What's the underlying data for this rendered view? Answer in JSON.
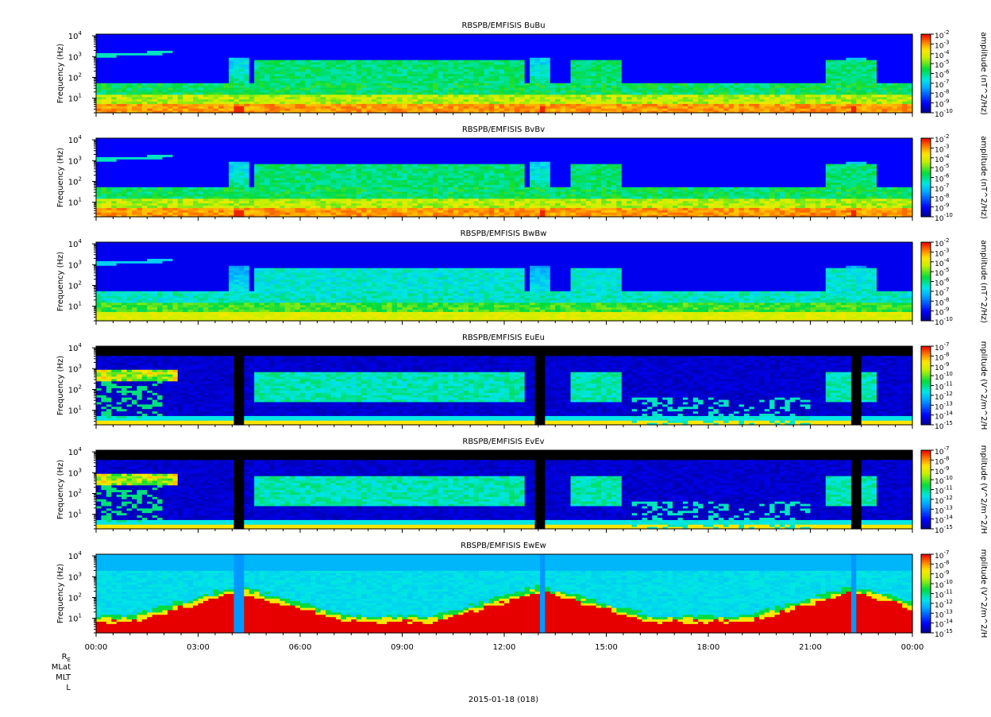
{
  "panels": [
    {
      "title": "RBSPB/EMFISIS  BuBu",
      "ylabel": "Frequency (Hz)",
      "yticks": [
        "10",
        "10",
        "10",
        "10"
      ],
      "ytick_exponents": [
        "1",
        "2",
        "3",
        "4"
      ],
      "colorbar_label": "amplitude (nT^2/Hz)",
      "colorbar_ticks": [
        "10",
        "10",
        "10",
        "10",
        "10",
        "10",
        "10",
        "10",
        "10"
      ],
      "colorbar_exponents": [
        "-2",
        "-3",
        "-4",
        "-5",
        "-6",
        "-7",
        "-8",
        "-9",
        "-10"
      ],
      "variant": "B"
    },
    {
      "title": "RBSPB/EMFISIS  BvBv",
      "ylabel": "Frequency (Hz)",
      "yticks": [
        "10",
        "10",
        "10",
        "10"
      ],
      "ytick_exponents": [
        "1",
        "2",
        "3",
        "4"
      ],
      "colorbar_label": "amplitude (nT^2/Hz)",
      "colorbar_ticks": [
        "10",
        "10",
        "10",
        "10",
        "10",
        "10",
        "10",
        "10",
        "10"
      ],
      "colorbar_exponents": [
        "-2",
        "-3",
        "-4",
        "-5",
        "-6",
        "-7",
        "-8",
        "-9",
        "-10"
      ],
      "variant": "B"
    },
    {
      "title": "RBSPB/EMFISIS  BwBw",
      "ylabel": "Frequency (Hz)",
      "yticks": [
        "10",
        "10",
        "10",
        "10"
      ],
      "ytick_exponents": [
        "1",
        "2",
        "3",
        "4"
      ],
      "colorbar_label": "amplitude (nT^2/Hz)",
      "colorbar_ticks": [
        "10",
        "10",
        "10",
        "10",
        "10",
        "10",
        "10",
        "10",
        "10"
      ],
      "colorbar_exponents": [
        "-2",
        "-3",
        "-4",
        "-5",
        "-6",
        "-7",
        "-8",
        "-9",
        "-10"
      ],
      "variant": "Bw"
    },
    {
      "title": "RBSPB/EMFISIS  EuEu",
      "ylabel": "Frequency (Hz)",
      "yticks": [
        "10",
        "10",
        "10",
        "10"
      ],
      "ytick_exponents": [
        "1",
        "2",
        "3",
        "4"
      ],
      "colorbar_label": "mplitude (V^2/m^2/H",
      "colorbar_ticks": [
        "10",
        "10",
        "10",
        "10",
        "10",
        "10",
        "10",
        "10",
        "10"
      ],
      "colorbar_exponents": [
        "-7",
        "-8",
        "-9",
        "-10",
        "-11",
        "-12",
        "-13",
        "-14",
        "-15"
      ],
      "variant": "E"
    },
    {
      "title": "RBSPB/EMFISIS  EvEv",
      "ylabel": "Frequency (Hz)",
      "yticks": [
        "10",
        "10",
        "10",
        "10"
      ],
      "ytick_exponents": [
        "1",
        "2",
        "3",
        "4"
      ],
      "colorbar_label": "mplitude (V^2/m^2/H",
      "colorbar_ticks": [
        "10",
        "10",
        "10",
        "10",
        "10",
        "10",
        "10",
        "10",
        "10"
      ],
      "colorbar_exponents": [
        "-7",
        "-8",
        "-9",
        "-10",
        "-11",
        "-12",
        "-13",
        "-14",
        "-15"
      ],
      "variant": "E"
    },
    {
      "title": "RBSPB/EMFISIS  EwEw",
      "ylabel": "Frequency (Hz)",
      "yticks": [
        "10",
        "10",
        "10",
        "10"
      ],
      "ytick_exponents": [
        "1",
        "2",
        "3",
        "4"
      ],
      "colorbar_label": "mplitude (V^2/m^2/H",
      "colorbar_ticks": [
        "10",
        "10",
        "10",
        "10",
        "10",
        "10",
        "10",
        "10",
        "10"
      ],
      "colorbar_exponents": [
        "-7",
        "-8",
        "-9",
        "-10",
        "-11",
        "-12",
        "-13",
        "-14",
        "-15"
      ],
      "variant": "Ew"
    }
  ],
  "xticks": [
    "00:00",
    "03:00",
    "06:00",
    "09:00",
    "12:00",
    "15:00",
    "18:00",
    "21:00",
    "00:00"
  ],
  "ephemeris_labels": {
    "re_base": "R",
    "re_sub": "E",
    "mlat": "MLat",
    "mlt": "MLT",
    "l": "L"
  },
  "date_label": "2015-01-18 (018)",
  "colors": {
    "deep_blue": "#0000a0",
    "blue": "#0000ff",
    "cyan": "#00d8ff",
    "green": "#00e040",
    "yellow": "#f0f000",
    "orange": "#ff8000",
    "red": "#ff0000",
    "black": "#000000"
  },
  "chart_data": {
    "type": "heatmap",
    "title": "",
    "xlabel": "2015-01-18 (018)",
    "x_range": [
      "00:00",
      "24:00"
    ],
    "ylabel": "Frequency (Hz)",
    "y_scale": "log",
    "ylim_hz": [
      2,
      12000
    ],
    "panels": [
      "BuBu",
      "BvBv",
      "BwBw",
      "EuEu",
      "EvEv",
      "EwEw"
    ],
    "b_colorbar_range": [
      "1e-10",
      "1e-2"
    ],
    "e_colorbar_range": [
      "1e-15",
      "1e-7"
    ],
    "features": {
      "hiss_band_hz": [
        30,
        1000
      ],
      "plasmasphere_intervals_hours": [
        [
          4.6,
          12.6
        ],
        [
          14.0,
          15.4
        ],
        [
          21.4,
          23.0
        ]
      ],
      "perigee_times_hours": [
        4.2,
        13.1,
        22.3
      ],
      "low_frequency_band_hz": [
        2,
        10
      ]
    }
  }
}
